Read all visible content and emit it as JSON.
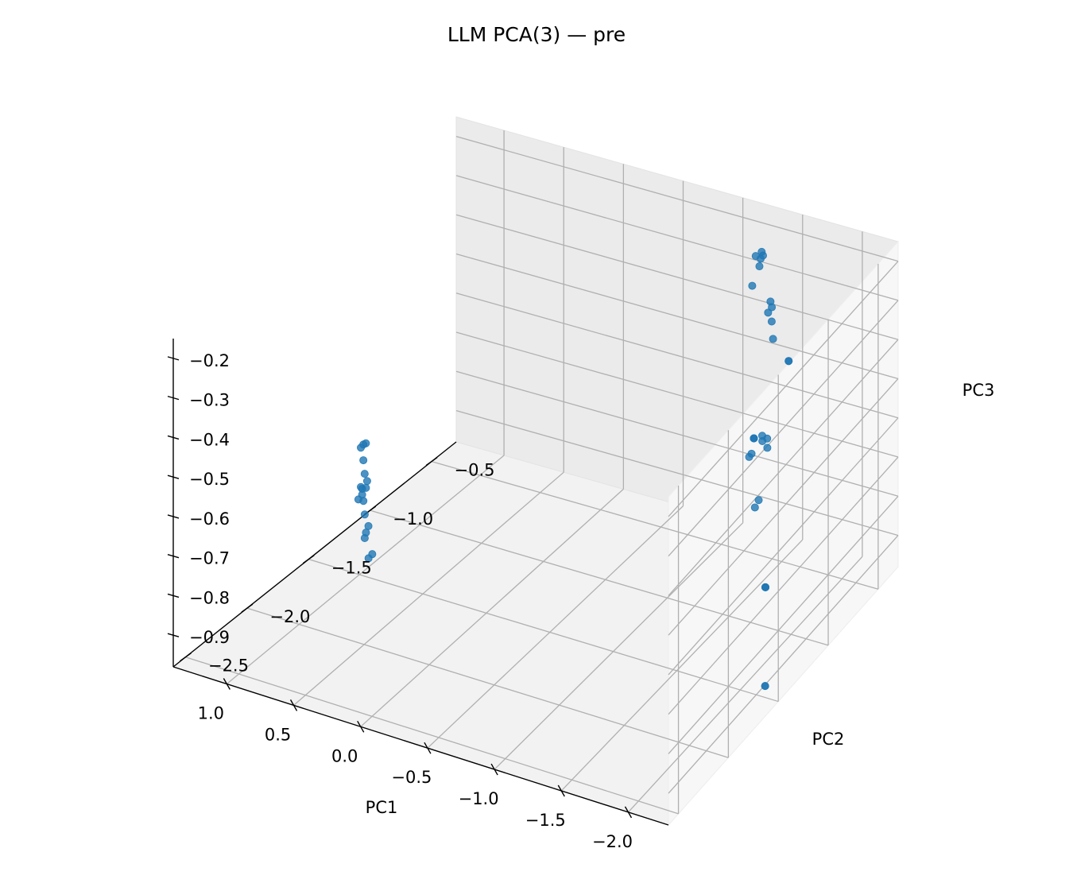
{
  "chart_data": {
    "type": "scatter",
    "projection": "3d",
    "title": "LLM PCA(3) — pre",
    "xlabel": "PC1",
    "ylabel": "PC2",
    "zlabel": "PC3",
    "xlim": [
      -2.3,
      1.4
    ],
    "ylim": [
      -2.6,
      -0.3
    ],
    "zlim": [
      -0.98,
      -0.15
    ],
    "xticks": [
      -2.0,
      -1.5,
      -1.0,
      -0.5,
      0.0,
      0.5,
      1.0
    ],
    "xtick_labels": [
      "−2.0",
      "−1.5",
      "−1.0",
      "−0.5",
      "0.0",
      "0.5",
      "1.0"
    ],
    "yticks": [
      -2.5,
      -2.0,
      -1.5,
      -1.0,
      -0.5
    ],
    "ytick_labels": [
      "−2.5",
      "−2.0",
      "−1.5",
      "−1.0",
      "−0.5"
    ],
    "zticks": [
      -0.9,
      -0.8,
      -0.7,
      -0.6,
      -0.5,
      -0.4,
      -0.3,
      -0.2
    ],
    "ztick_labels": [
      "−0.9",
      "−0.8",
      "−0.7",
      "−0.6",
      "−0.5",
      "−0.4",
      "−0.3",
      "−0.2"
    ],
    "grid": true,
    "marker_color": "#1f77b4",
    "points": [
      {
        "x": -2.22,
        "y": -1.53,
        "z": -0.94
      },
      {
        "x": -2.22,
        "y": -1.53,
        "z": -0.94
      },
      {
        "x": -1.65,
        "y": -0.83,
        "z": -0.94
      },
      {
        "x": -1.65,
        "y": -0.83,
        "z": -0.94
      },
      {
        "x": -1.65,
        "y": -0.83,
        "z": -0.94
      },
      {
        "x": -1.59,
        "y": -0.87,
        "z": -0.555
      },
      {
        "x": -1.59,
        "y": -0.87,
        "z": -0.555
      },
      {
        "x": -1.59,
        "y": -0.87,
        "z": -0.555
      },
      {
        "x": -1.48,
        "y": -0.41,
        "z": -0.495
      },
      {
        "x": -1.48,
        "y": -0.41,
        "z": -0.495
      },
      {
        "x": -1.31,
        "y": -0.5,
        "z": -0.84
      },
      {
        "x": -1.27,
        "y": -0.49,
        "z": -0.865
      },
      {
        "x": -1.32,
        "y": -0.43,
        "z": -0.725
      },
      {
        "x": -1.31,
        "y": -0.42,
        "z": -0.705
      },
      {
        "x": -1.27,
        "y": -0.42,
        "z": -0.715
      },
      {
        "x": -1.26,
        "y": -0.41,
        "z": -0.705
      },
      {
        "x": -1.32,
        "y": -0.4,
        "z": -0.36
      },
      {
        "x": -1.34,
        "y": -0.41,
        "z": -0.37
      },
      {
        "x": -1.3,
        "y": -0.4,
        "z": -0.39
      },
      {
        "x": -1.33,
        "y": -0.4,
        "z": -0.41
      },
      {
        "x": -1.35,
        "y": -0.41,
        "z": -0.45
      },
      {
        "x": -1.18,
        "y": -0.42,
        "z": -0.755
      },
      {
        "x": -1.16,
        "y": -0.42,
        "z": -0.765
      },
      {
        "x": -1.24,
        "y": -0.38,
        "z": -0.255
      },
      {
        "x": -1.22,
        "y": -0.37,
        "z": -0.25
      },
      {
        "x": -1.22,
        "y": -0.38,
        "z": -0.265
      },
      {
        "x": -1.17,
        "y": -0.37,
        "z": -0.265
      },
      {
        "x": -1.21,
        "y": -0.38,
        "z": -0.285
      },
      {
        "x": -1.15,
        "y": -0.38,
        "z": -0.34
      },
      {
        "x": 1.14,
        "y": -1.3,
        "z": -0.71
      },
      {
        "x": 1.16,
        "y": -1.3,
        "z": -0.715
      },
      {
        "x": 1.18,
        "y": -1.3,
        "z": -0.725
      },
      {
        "x": 1.16,
        "y": -1.3,
        "z": -0.755
      },
      {
        "x": 1.14,
        "y": -1.31,
        "z": -0.785
      },
      {
        "x": 1.13,
        "y": -1.3,
        "z": -0.805
      },
      {
        "x": 1.13,
        "y": -1.31,
        "z": -0.82
      },
      {
        "x": 1.16,
        "y": -1.31,
        "z": -0.825
      },
      {
        "x": 1.18,
        "y": -1.3,
        "z": -0.825
      },
      {
        "x": 1.16,
        "y": -1.31,
        "z": -0.84
      },
      {
        "x": 1.19,
        "y": -1.31,
        "z": -0.855
      },
      {
        "x": 1.15,
        "y": -1.31,
        "z": -0.855
      },
      {
        "x": 1.13,
        "y": -1.32,
        "z": -0.885
      },
      {
        "x": 1.11,
        "y": -1.31,
        "z": -0.915
      },
      {
        "x": 1.12,
        "y": -1.32,
        "z": -0.93
      },
      {
        "x": 1.13,
        "y": -1.32,
        "z": -0.945
      },
      {
        "x": 1.07,
        "y": -1.32,
        "z": -0.98
      },
      {
        "x": 1.09,
        "y": -1.33,
        "z": -0.99
      }
    ]
  }
}
